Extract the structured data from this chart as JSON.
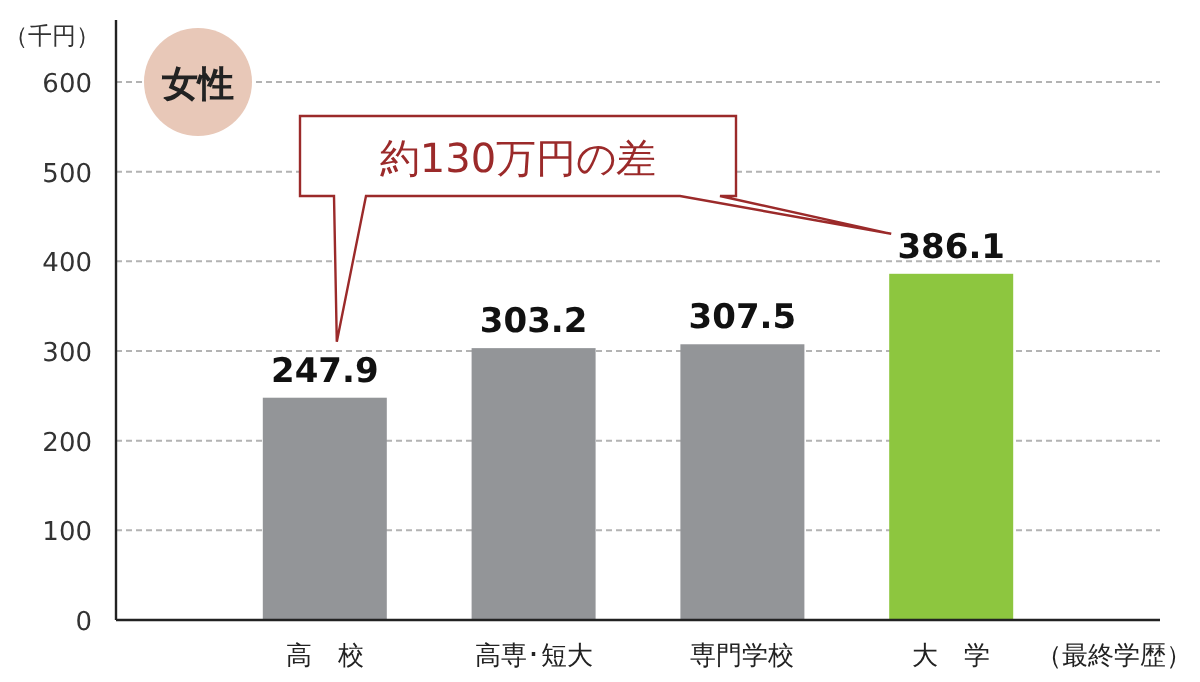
{
  "chart_data": {
    "type": "bar",
    "ylabel": "（千円）",
    "xlabel": "（最終学歴）",
    "categories": [
      "高　校",
      "高専･短大",
      "専門学校",
      "大　学"
    ],
    "values": [
      247.9,
      303.2,
      307.5,
      386.1
    ],
    "colors": [
      "#939598",
      "#939598",
      "#939598",
      "#8dc63f"
    ],
    "ylim": [
      0,
      600
    ],
    "yticks": [
      0,
      100,
      200,
      300,
      400,
      500,
      600
    ],
    "grid": "y",
    "data_labels": true,
    "annotations": [
      "女性",
      "約130万円の差"
    ]
  }
}
